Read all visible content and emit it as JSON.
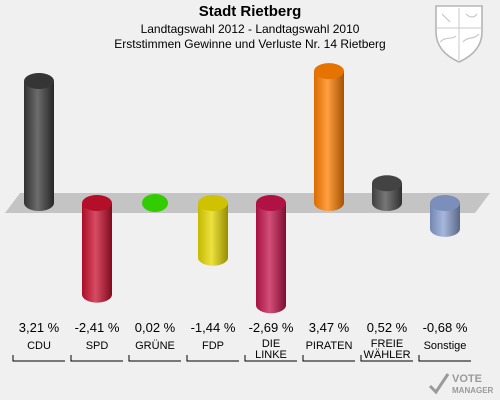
{
  "header": {
    "title": "Stadt Rietberg",
    "subtitle1": "Landtagswahl 2012 - Landtagswahl 2010",
    "subtitle2": "Erststimmen Gewinne und Verluste Nr. 14 Rietberg"
  },
  "logo": {
    "text_line1": "VOTE",
    "text_line2": "MANAGER"
  },
  "chart_data": {
    "type": "bar",
    "title": "",
    "categories": [
      "CDU",
      "SPD",
      "GRÜNE",
      "FDP",
      "DIE LINKE",
      "PIRATEN",
      "FREIE WÄHLER",
      "Sonstige"
    ],
    "category_lines": [
      [
        "CDU"
      ],
      [
        "SPD"
      ],
      [
        "GRÜNE"
      ],
      [
        "FDP"
      ],
      [
        "DIE",
        "LINKE"
      ],
      [
        "PIRATEN"
      ],
      [
        "FREIE",
        "WÄHLER"
      ],
      [
        "Sonstige"
      ]
    ],
    "values": [
      3.21,
      -2.41,
      0.02,
      -1.44,
      -2.69,
      3.47,
      0.52,
      -0.68
    ],
    "value_labels": [
      "3,21 %",
      "-2,41 %",
      "0,02 %",
      "-1,44 %",
      "-2,69 %",
      "3,47 %",
      "0,52 %",
      "-0,68 %"
    ],
    "colors": [
      "#3b3b3b",
      "#c8102e",
      "#33cc00",
      "#e6d800",
      "#c3144c",
      "#ff7f00",
      "#4a4a4a",
      "#8a9fd0"
    ],
    "baseline": 0,
    "grid": false,
    "legend": "none"
  }
}
